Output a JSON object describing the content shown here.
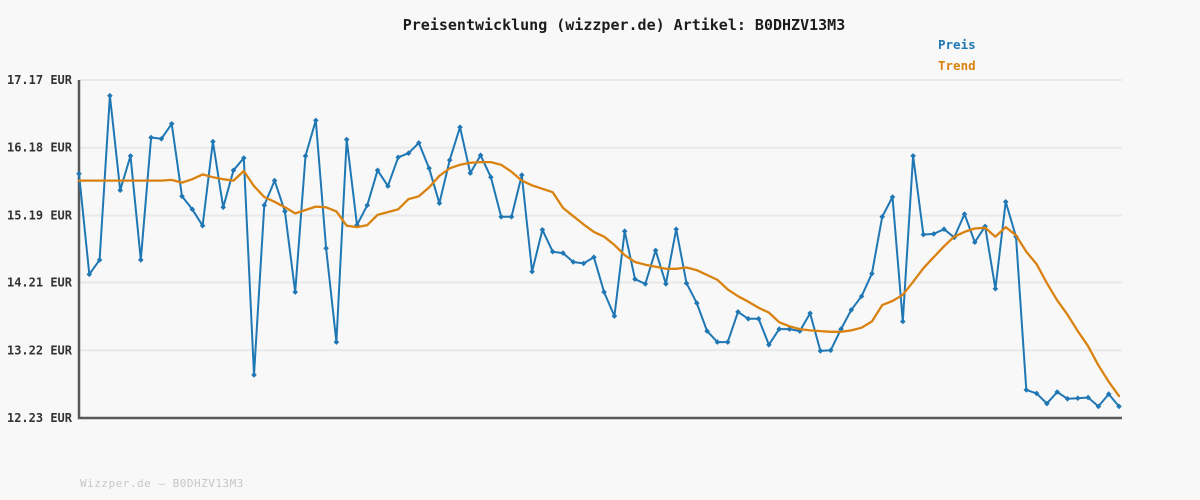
{
  "header": {
    "title": "Preisentwicklung (wizzper.de) Artikel: B0DHZV13M3"
  },
  "footer": {
    "text": "Wizzper.de – B0DHZV13M3"
  },
  "colors": {
    "background": "#f8f8f8",
    "grid": "#e9e9e9",
    "axis": "#58595b",
    "tick_label": "#333333",
    "price_blue": "#1f77b4",
    "trend_orange": "#d9820f",
    "watermark": "#c6c6c6"
  },
  "chart_data": {
    "type": "line",
    "title": "Preisentwicklung (wizzper.de) Artikel: B0DHZV13M3",
    "xlabel": "",
    "ylabel": "",
    "y_unit": "EUR",
    "ylim": [
      12.23,
      17.17
    ],
    "y_ticks": [
      17.17,
      16.18,
      15.19,
      14.21,
      13.22,
      12.23
    ],
    "y_tick_labels": [
      "17.17 EUR",
      "16.18 EUR",
      "15.19 EUR",
      "14.21 EUR",
      "13.22 EUR",
      "12.23 EUR"
    ],
    "x_tick_labels": "none",
    "grid": "horizontal",
    "legend_position": "top-right",
    "series": [
      {
        "name": "Preis",
        "color": "#1f77b4",
        "marker": "diamond",
        "values": [
          15.8,
          14.33,
          14.54,
          16.94,
          15.56,
          16.06,
          14.54,
          16.33,
          16.31,
          16.53,
          15.47,
          15.28,
          15.04,
          16.27,
          15.31,
          15.85,
          16.03,
          12.86,
          15.34,
          15.7,
          15.25,
          14.07,
          16.06,
          16.58,
          14.71,
          13.34,
          16.3,
          15.05,
          15.34,
          15.85,
          15.62,
          16.04,
          16.1,
          16.25,
          15.88,
          15.37,
          16.0,
          16.48,
          15.81,
          16.07,
          15.75,
          15.17,
          15.17,
          15.78,
          14.37,
          14.98,
          14.66,
          14.64,
          14.51,
          14.49,
          14.58,
          14.07,
          13.72,
          14.96,
          14.26,
          14.19,
          14.68,
          14.19,
          14.99,
          14.2,
          13.91,
          13.5,
          13.34,
          13.34,
          13.78,
          13.68,
          13.68,
          13.3,
          13.53,
          13.53,
          13.5,
          13.76,
          13.21,
          13.22,
          13.53,
          13.81,
          14.01,
          14.34,
          15.17,
          15.46,
          13.64,
          16.06,
          14.91,
          14.92,
          14.99,
          14.87,
          15.21,
          14.8,
          15.03,
          14.12,
          15.39,
          14.88,
          12.64,
          12.59,
          12.44,
          12.61,
          12.51,
          12.52,
          12.53,
          12.4,
          12.58,
          12.4
        ]
      },
      {
        "name": "Trend",
        "color": "#d9820f",
        "marker": "none",
        "values": [
          15.7,
          15.7,
          15.7,
          15.7,
          15.7,
          15.7,
          15.7,
          15.7,
          15.7,
          15.71,
          15.67,
          15.72,
          15.79,
          15.75,
          15.72,
          15.7,
          15.84,
          15.62,
          15.46,
          15.39,
          15.31,
          15.22,
          15.27,
          15.32,
          15.31,
          15.25,
          15.04,
          15.02,
          15.05,
          15.2,
          15.24,
          15.28,
          15.43,
          15.47,
          15.6,
          15.77,
          15.88,
          15.93,
          15.96,
          15.97,
          15.97,
          15.93,
          15.83,
          15.7,
          15.63,
          15.58,
          15.53,
          15.3,
          15.18,
          15.06,
          14.95,
          14.88,
          14.76,
          14.61,
          14.51,
          14.47,
          14.44,
          14.41,
          14.41,
          14.43,
          14.39,
          14.32,
          14.25,
          14.11,
          14.01,
          13.93,
          13.84,
          13.77,
          13.63,
          13.57,
          13.53,
          13.51,
          13.5,
          13.49,
          13.49,
          13.51,
          13.55,
          13.64,
          13.88,
          13.94,
          14.03,
          14.22,
          14.42,
          14.58,
          14.74,
          14.88,
          14.95,
          15.0,
          15.01,
          14.88,
          15.02,
          14.9,
          14.66,
          14.48,
          14.2,
          13.95,
          13.74,
          13.5,
          13.28,
          13.0,
          12.76,
          12.55
        ]
      }
    ]
  }
}
